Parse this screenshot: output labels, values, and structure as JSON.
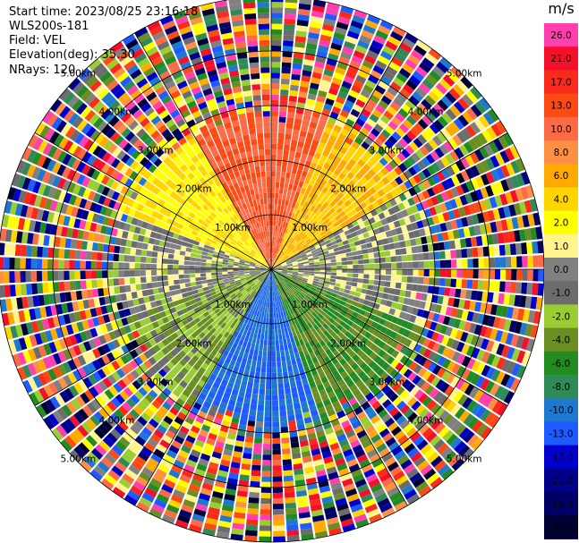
{
  "header": {
    "start_time": "Start time: 2023/08/25 23:16:18",
    "site": "WLS200s-181",
    "field": "Field: VEL",
    "elevation": "Elevation(deg): 35.30",
    "nrays": "NRays: 120"
  },
  "chart_data": {
    "type": "ppi-polar-heatmap",
    "field": "VEL",
    "unit": "m/s",
    "nrays": 120,
    "elevation_deg": 35.3,
    "range_rings_km": [
      1.0,
      2.0,
      3.0,
      4.0,
      5.0
    ],
    "ring_labels": [
      "1.00km",
      "2.00km",
      "3.00km",
      "4.00km",
      "5.00km"
    ],
    "max_range_km": 5.0,
    "colorbar": {
      "ticks": [
        26.0,
        21.0,
        17.0,
        13.0,
        10.0,
        8.0,
        6.0,
        4.0,
        2.0,
        1.0,
        0.0,
        -1.0,
        -2.0,
        -4.0,
        -6.0,
        -8.0,
        -10.0,
        -13.0,
        -17.0,
        -21.0,
        -26.0,
        -30.0
      ],
      "tick_labels": [
        "26.0",
        "21.0",
        "17.0",
        "13.0",
        "10.0",
        "8.0",
        "6.0",
        "4.0",
        "2.0",
        "1.0",
        "0.0",
        "-1.0",
        "-2.0",
        "-4.0",
        "-6.0",
        "-8.0",
        "-10.0",
        "-13.0",
        "-17.0",
        "-21.0",
        "-26.0",
        "-30.0"
      ],
      "colors": [
        "#ff3fae",
        "#f40f2a",
        "#fa2a1a",
        "#fc4a14",
        "#fd6a46",
        "#fe9044",
        "#ffaa00",
        "#ffd500",
        "#ffff00",
        "#fff58a",
        "#808080",
        "#6c6c6c",
        "#9acd32",
        "#6b8e23",
        "#228b22",
        "#2e8b57",
        "#1e78d0",
        "#1e5bff",
        "#0000cd",
        "#00008b",
        "#000066",
        "#000033"
      ]
    },
    "regions": {
      "near_range_km": 2.6,
      "north_sector_ms": 13.0,
      "northeast_ms": 6.0,
      "northwest_ms": 4.0,
      "east_west_ms": 0.0,
      "southwest_ms": -2.0,
      "southeast_ms": -4.0,
      "south_ms": -10.0,
      "south_outer_ms": -6.0
    }
  }
}
